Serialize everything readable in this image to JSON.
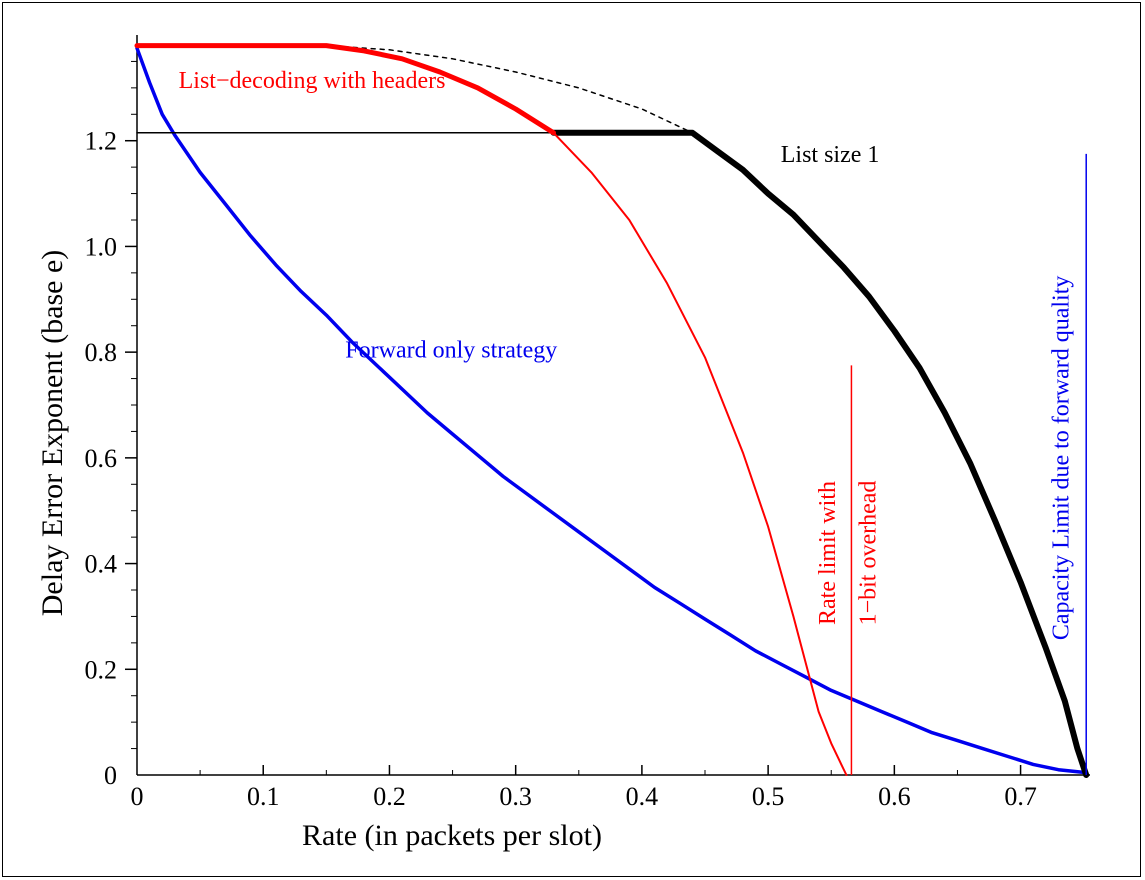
{
  "chart_data": {
    "type": "line",
    "xlabel": "Rate (in  packets per slot)",
    "ylabel": "Delay Error Exponent (base e)",
    "xlim": [
      0,
      0.755
    ],
    "ylim": [
      0,
      1.4
    ],
    "x_ticks": [
      0,
      0.1,
      0.2,
      0.3,
      0.4,
      0.5,
      0.6,
      0.7
    ],
    "x_tick_labels": [
      "0",
      "0.1",
      "0.2",
      "0.3",
      "0.4",
      "0.5",
      "0.6",
      "0.7"
    ],
    "y_ticks": [
      0,
      0.2,
      0.4,
      0.6,
      0.8,
      1.0,
      1.2
    ],
    "y_tick_labels": [
      "0",
      "0.2",
      "0.4",
      "0.6",
      "0.8",
      "1.0",
      "1.2"
    ],
    "y_minor_step": 0.05,
    "grid": false,
    "colors": {
      "red": "#ff0000",
      "blue": "#0000ee",
      "black": "#000000"
    },
    "series": [
      {
        "key": "forward",
        "color": "#0000ee",
        "width": 3.5,
        "dash": "",
        "x": [
          0,
          0.01,
          0.02,
          0.03,
          0.05,
          0.07,
          0.09,
          0.11,
          0.13,
          0.15,
          0.17,
          0.19,
          0.21,
          0.23,
          0.25,
          0.27,
          0.29,
          0.31,
          0.33,
          0.35,
          0.37,
          0.39,
          0.41,
          0.43,
          0.45,
          0.47,
          0.49,
          0.51,
          0.53,
          0.55,
          0.57,
          0.59,
          0.61,
          0.63,
          0.65,
          0.67,
          0.69,
          0.71,
          0.73,
          0.75
        ],
        "y": [
          1.375,
          1.31,
          1.25,
          1.21,
          1.14,
          1.08,
          1.02,
          0.965,
          0.915,
          0.87,
          0.82,
          0.775,
          0.73,
          0.685,
          0.645,
          0.605,
          0.565,
          0.53,
          0.495,
          0.46,
          0.425,
          0.39,
          0.355,
          0.325,
          0.295,
          0.265,
          0.235,
          0.21,
          0.185,
          0.16,
          0.14,
          0.12,
          0.1,
          0.08,
          0.065,
          0.05,
          0.035,
          0.02,
          0.01,
          0.005
        ]
      },
      {
        "key": "list1-thin",
        "color": "#000000",
        "width": 1.5,
        "dash": "",
        "x": [
          0,
          0.33
        ],
        "y": [
          1.215,
          1.215
        ]
      },
      {
        "key": "list1-dotted",
        "color": "#000000",
        "width": 1.5,
        "dash": "4,5",
        "x": [
          0.15,
          0.2,
          0.25,
          0.3,
          0.35,
          0.4,
          0.44
        ],
        "y": [
          1.38,
          1.372,
          1.355,
          1.33,
          1.3,
          1.26,
          1.215
        ]
      },
      {
        "key": "list1",
        "color": "#000000",
        "width": 6,
        "dash": "",
        "x": [
          0.33,
          0.44,
          0.46,
          0.48,
          0.5,
          0.52,
          0.54,
          0.56,
          0.58,
          0.6,
          0.62,
          0.64,
          0.66,
          0.68,
          0.7,
          0.72,
          0.735,
          0.745,
          0.752
        ],
        "y": [
          1.215,
          1.215,
          1.18,
          1.145,
          1.1,
          1.06,
          1.01,
          0.96,
          0.905,
          0.84,
          0.77,
          0.685,
          0.59,
          0.48,
          0.365,
          0.24,
          0.14,
          0.05,
          0.0
        ]
      },
      {
        "key": "list-thick",
        "color": "#ff0000",
        "width": 5,
        "dash": "",
        "x": [
          0,
          0.15,
          0.18,
          0.21,
          0.24,
          0.27,
          0.3,
          0.33
        ],
        "y": [
          1.38,
          1.38,
          1.37,
          1.355,
          1.33,
          1.3,
          1.26,
          1.215
        ]
      },
      {
        "key": "list-thin",
        "color": "#ff0000",
        "width": 2,
        "dash": "",
        "x": [
          0.33,
          0.36,
          0.39,
          0.42,
          0.45,
          0.48,
          0.5,
          0.52,
          0.54,
          0.55,
          0.558,
          0.562
        ],
        "y": [
          1.215,
          1.14,
          1.05,
          0.93,
          0.79,
          0.61,
          0.47,
          0.3,
          0.12,
          0.06,
          0.02,
          0.0
        ]
      }
    ],
    "vlines": [
      {
        "key": "rate-limit",
        "x": 0.566,
        "y0": 0,
        "y1": 0.775,
        "color": "#ff0000",
        "width": 1.5
      },
      {
        "key": "capacity",
        "x": 0.752,
        "y0": 0,
        "y1": 1.175,
        "color": "#0000ee",
        "width": 1.5
      }
    ],
    "annotations": [
      {
        "key": "list-decoding",
        "text": "List−decoding with headers",
        "x": 0.033,
        "y": 1.3,
        "color": "#ff0000",
        "rotate": false
      },
      {
        "key": "list-size-1",
        "text": "List size 1",
        "x": 0.51,
        "y": 1.16,
        "color": "#000000",
        "rotate": false
      },
      {
        "key": "forward-only",
        "text": "Forward only strategy",
        "x": 0.165,
        "y": 0.79,
        "color": "#0000ee",
        "rotate": false
      },
      {
        "key": "rate-limit-1",
        "text": "Rate limit with",
        "x": 0.553,
        "y": 0.42,
        "color": "#ff0000",
        "rotate": true
      },
      {
        "key": "rate-limit-2",
        "text": "1−bit overhead",
        "x": 0.585,
        "y": 0.42,
        "color": "#ff0000",
        "rotate": true
      },
      {
        "key": "capacity-limit",
        "text": "Capacity Limit due to forward quality",
        "x": 0.738,
        "y": 0.6,
        "color": "#0000ee",
        "rotate": true
      }
    ]
  }
}
